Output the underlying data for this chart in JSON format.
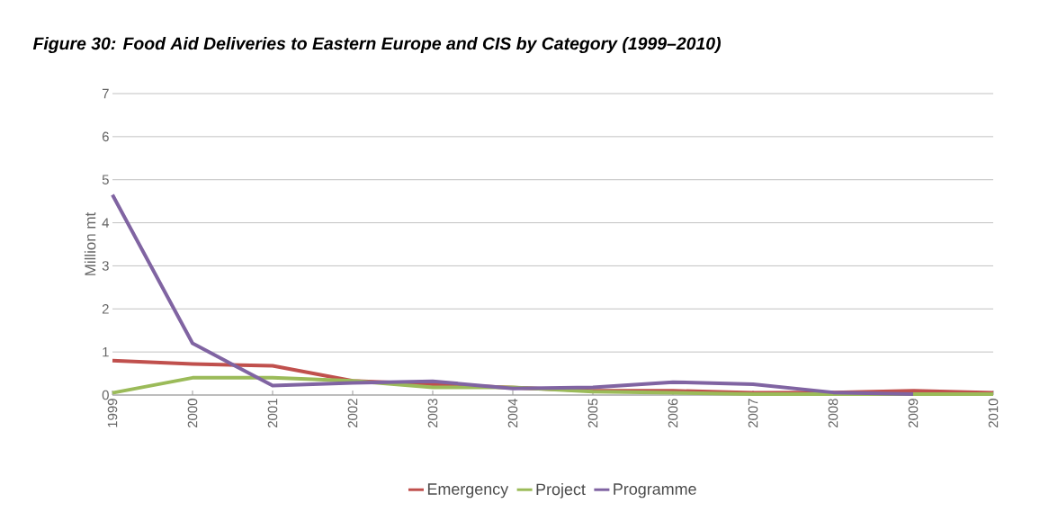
{
  "chart_data": {
    "type": "line",
    "title": "*Figure 30: Food Aid Deliveries to Eastern Europe and CIS by Category (1999–2010)*",
    "ylabel": "Million mt",
    "categories": [
      "1999",
      "2000",
      "2001",
      "2002",
      "2003",
      "2004",
      "2005",
      "2006",
      "2007",
      "2008",
      "2009",
      "2010"
    ],
    "series": [
      {
        "name": "Emergency",
        "color": "#c0504d",
        "values": [
          0.8,
          0.72,
          0.68,
          0.33,
          0.25,
          0.17,
          0.1,
          0.1,
          0.05,
          0.06,
          0.1,
          0.05
        ]
      },
      {
        "name": "Project",
        "color": "#9bbb59",
        "values": [
          0.05,
          0.4,
          0.4,
          0.33,
          0.18,
          0.18,
          0.08,
          0.05,
          0.02,
          0.02,
          0.02,
          0.02
        ]
      },
      {
        "name": "Programme",
        "color": "#8064a2",
        "values": [
          4.65,
          1.2,
          0.22,
          0.28,
          0.32,
          0.15,
          0.18,
          0.3,
          0.25,
          0.06,
          0.02,
          null
        ]
      }
    ],
    "ylim": [
      0,
      7
    ],
    "yticks": [
      0,
      1,
      2,
      3,
      4,
      5,
      6,
      7
    ],
    "grid": "y",
    "legend": "bottom",
    "marker": "none",
    "line_style": "solid"
  }
}
